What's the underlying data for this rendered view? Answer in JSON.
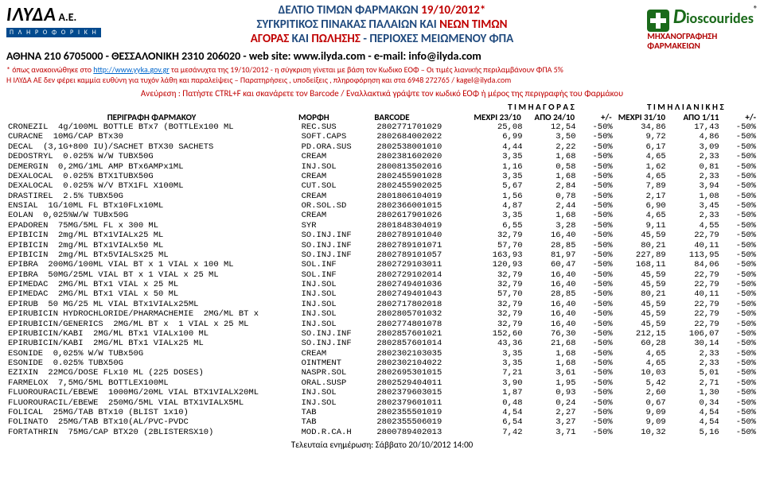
{
  "header": {
    "logo_left": {
      "name": "ΙΛΥΔΑ",
      "ae": "Α.Ε.",
      "sub": "Π Λ Η Ρ Ο Φ Ο Ρ Ι Κ Η"
    },
    "logo_right": {
      "name": "ioscourides",
      "mhx1": "ΜΗΧΑΝΟΓΡΑΦΗΣΗ",
      "mhx2": "ΦΑΡΜΑΚΕΙΩΝ"
    },
    "l1a": "ΔΕΛΤΙΟ ΤΙΜΩΝ ΦΑΡΜΑΚΩΝ ",
    "l1b": "19/10/2012*",
    "l2a": "ΣΥΓΚΡΙΤΙΚΟΣ ΠΙΝΑΚΑΣ ΠΑΛΑΙΩΝ ΚΑΙ ",
    "l2b": "ΝΕΩΝ ΤΙΜΩΝ",
    "l3a": "ΑΓΟΡΑΣ ",
    "l3b": "ΚΑΙ ",
    "l3c": "ΠΩΛΗΣΗΣ",
    "l3d": "  -  ΠΕΡΙΟΧΕΣ ΜΕΙΩΜΕΝΟΥ ΦΠΑ",
    "contact": "ΑΘΗΝΑ 210 6705000  -  ΘΕΣΣΑΛΟΝΙΚΗ 2310 206020  -  web site: www.ilyda.com  -  e-mail: info@ilyda.com",
    "note1a": "* όπως ανακοινώθηκε στο ",
    "note1url": "http://www.yyka.gov.gr",
    "note1b": " τα μεσάνυχτα της 19/10/2012  - η σύγκριση γίνεται με βάση τον Κωδικο ΕΟΦ  –   Οι τιμές λιανικής περιλαμβάνουν ΦΠΑ 5%",
    "note2": "Η ΙΛΥΔΑ ΑΕ δεν φέρει καμμία ευθύνη για τυχόν λάθη και παραλείψεις  –   Παρατηρήσεις , υποδείξεις , πληροφόρηση και στα  6948 272765 / kagel@ilyda.com",
    "note3": "Ανεύρεση :   Πατήστε CTRL+F  και σκανάρετε τον Barcode   /   Εναλλακτικά γράψτε τον κωδικό ΕΟΦ ή μέρος της περιγραφής του Φαρμάκου"
  },
  "th": {
    "group1": "Τ Ι Μ Η    Α Γ Ο Ρ Α Σ",
    "group2": "Τ Ι Μ Η    Λ Ι Α Ν Ι Κ Η Σ",
    "c1": "ΠΕΡΙΓΡΑΦΗ  ΦΑΡΜΑΚΟΥ",
    "c2": "ΜΟΡΦΗ",
    "c3": "BARCODE",
    "c4": "ΜΕΧΡΙ 23/10",
    "c5": "ΑΠΟ 24/10",
    "c6": "+/-",
    "c7": "ΜΕΧΡΙ 31/10",
    "c8": "ΑΠΟ 1/11",
    "c9": "+/-"
  },
  "rows": [
    {
      "d": "CRONEZIL  4g/100ML BOTTLE BTx7 (BOTTLEx100 ML",
      "m": "REC.SUS",
      "b": "2802771701029",
      "v": [
        "25,08",
        "12,54",
        "-50%",
        "34,86",
        "17,43",
        "-50%"
      ]
    },
    {
      "d": "CURACNE  10MG/CAP BTx30",
      "m": "SOFT.CAPS",
      "b": "2802684002022",
      "v": [
        "6,99",
        "3,50",
        "-50%",
        "9,72",
        "4,86",
        "-50%"
      ]
    },
    {
      "d": "DECAL  (3,1G+800 IU)/SACHET BTX30 SACHETS",
      "m": "PD.ORA.SUS",
      "b": "2802538001010",
      "v": [
        "4,44",
        "2,22",
        "-50%",
        "6,17",
        "3,09",
        "-50%"
      ]
    },
    {
      "d": "DEDOSTRYL  0.025% W/W TUBX50G",
      "m": "CREAM",
      "b": "2802381602020",
      "v": [
        "3,35",
        "1,68",
        "-50%",
        "4,65",
        "2,33",
        "-50%"
      ]
    },
    {
      "d": "DEMERGIN  0,2MG/1ML AMP BTx6AMPx1ML",
      "m": "INJ.SOL",
      "b": "2800813502016",
      "v": [
        "1,16",
        "0,58",
        "-50%",
        "1,62",
        "0,81",
        "-50%"
      ]
    },
    {
      "d": "DEXALOCAL  0.025% BTX1TUBX50G",
      "m": "CREAM",
      "b": "2802455901028",
      "v": [
        "3,35",
        "1,68",
        "-50%",
        "4,65",
        "2,33",
        "-50%"
      ]
    },
    {
      "d": "DEXALOCAL  0.025% W/V BTX1FL X100ML",
      "m": "CUT.SOL",
      "b": "2802455902025",
      "v": [
        "5,67",
        "2,84",
        "-50%",
        "7,89",
        "3,94",
        "-50%"
      ]
    },
    {
      "d": "DRASTIREL  2.5% TUBX50G",
      "m": "CREAM",
      "b": "2801806104019",
      "v": [
        "1,56",
        "0,78",
        "-50%",
        "2,17",
        "1,08",
        "-50%"
      ]
    },
    {
      "d": "ENSIAL  1G/10ML FL BTx10FLx10ML",
      "m": "OR.SOL.SD",
      "b": "2802366001015",
      "v": [
        "4,87",
        "2,44",
        "-50%",
        "6,90",
        "3,45",
        "-50%"
      ]
    },
    {
      "d": "EOLAN  0,025%W/W TUBx50G",
      "m": "CREAM",
      "b": "2802617901026",
      "v": [
        "3,35",
        "1,68",
        "-50%",
        "4,65",
        "2,33",
        "-50%"
      ]
    },
    {
      "d": "EPADOREN  75MG/5ML FL x 300 ML",
      "m": "SYR",
      "b": "2801848304019",
      "v": [
        "6,55",
        "3,28",
        "-50%",
        "9,11",
        "4,55",
        "-50%"
      ]
    },
    {
      "d": "EPIBICIN  2mg/ML BTx1VIALx25 ML",
      "m": "SO.INJ.INF",
      "b": "2802789101040",
      "v": [
        "32,79",
        "16,40",
        "-50%",
        "45,59",
        "22,79",
        "-50%"
      ]
    },
    {
      "d": "EPIBICIN  2mg/ML BTx1VIALx50 ML",
      "m": "SO.INJ.INF",
      "b": "2802789101071",
      "v": [
        "57,70",
        "28,85",
        "-50%",
        "80,21",
        "40,11",
        "-50%"
      ]
    },
    {
      "d": "EPIBICIN  2mg/ML BTx5VIALSx25 ML",
      "m": "SO.INJ.INF",
      "b": "2802789101057",
      "v": [
        "163,93",
        "81,97",
        "-50%",
        "227,89",
        "113,95",
        "-50%"
      ]
    },
    {
      "d": "EPIBRA  200MG/100ML VIAL BT x 1 VIAL x 100 ML",
      "m": "SOL.INF",
      "b": "2802729103011",
      "v": [
        "120,93",
        "60,47",
        "-50%",
        "168,11",
        "84,06",
        "-50%"
      ]
    },
    {
      "d": "EPIBRA  50MG/25ML VIAL BT x 1 VIAL x 25 ML",
      "m": "SOL.INF",
      "b": "2802729102014",
      "v": [
        "32,79",
        "16,40",
        "-50%",
        "45,59",
        "22,79",
        "-50%"
      ]
    },
    {
      "d": "EPIMEDAC  2MG/ML BTx1 VIAL x 25 ML",
      "m": "INJ.SOL",
      "b": "2802749401036",
      "v": [
        "32,79",
        "16,40",
        "-50%",
        "45,59",
        "22,79",
        "-50%"
      ]
    },
    {
      "d": "EPIMEDAC  2MG/ML BTx1 VIAL x 50 ML",
      "m": "INJ.SOL",
      "b": "2802749401043",
      "v": [
        "57,70",
        "28,85",
        "-50%",
        "80,21",
        "40,11",
        "-50%"
      ]
    },
    {
      "d": "EPIRUB  50 MG/25 ML VIAL BTx1VIALx25ML",
      "m": "INJ.SOL",
      "b": "2802717802018",
      "v": [
        "32,79",
        "16,40",
        "-50%",
        "45,59",
        "22,79",
        "-50%"
      ]
    },
    {
      "d": "EPIRUBICIN HYDROCHLORIDE/PHARMACHEMIE  2MG/ML BT x",
      "m": "INJ.SOL",
      "b": "2802805701032",
      "v": [
        "32,79",
        "16,40",
        "-50%",
        "45,59",
        "22,79",
        "-50%"
      ]
    },
    {
      "d": "EPIRUBICIN/GENERICS  2MG/ML BT x  1 VIAL x 25 ML",
      "m": "INJ.SOL",
      "b": "2802774801078",
      "v": [
        "32,79",
        "16,40",
        "-50%",
        "45,59",
        "22,79",
        "-50%"
      ]
    },
    {
      "d": "EPIRUBICIN/KABI  2MG/ML BTx1 VIALx100 ML",
      "m": "SO.INJ.INF",
      "b": "2802857601021",
      "v": [
        "152,60",
        "76,30",
        "-50%",
        "212,15",
        "106,07",
        "-50%"
      ]
    },
    {
      "d": "EPIRUBICIN/KABI  2MG/ML BTx1 VIALx25 ML",
      "m": "SO.INJ.INF",
      "b": "2802857601014",
      "v": [
        "43,36",
        "21,68",
        "-50%",
        "60,28",
        "30,14",
        "-50%"
      ]
    },
    {
      "d": "ESONIDE  0,025% W/W TUBx50G",
      "m": "CREAM",
      "b": "2802302103035",
      "v": [
        "3,35",
        "1,68",
        "-50%",
        "4,65",
        "2,33",
        "-50%"
      ]
    },
    {
      "d": "ESONIDE  0.025% TUBX50G",
      "m": "OINTMENT",
      "b": "2802302104022",
      "v": [
        "3,35",
        "1,68",
        "-50%",
        "4,65",
        "2,33",
        "-50%"
      ]
    },
    {
      "d": "EZIXIN  22MCG/DOSE FLx10 ML (225 DOSES)",
      "m": "NASPR.SOL",
      "b": "2802695301015",
      "v": [
        "7,21",
        "3,61",
        "-50%",
        "10,03",
        "5,01",
        "-50%"
      ]
    },
    {
      "d": "FARMELOX  7,5MG/5ML BOTTLEX100ML",
      "m": "ORAL.SUSP",
      "b": "2802529404011",
      "v": [
        "3,90",
        "1,95",
        "-50%",
        "5,42",
        "2,71",
        "-50%"
      ]
    },
    {
      "d": "FLUOROURACIL/EBEWE  1000MG/20ML VIAL BTX1VIALX20ML",
      "m": "INJ.SOL",
      "b": "2802379603015",
      "v": [
        "1,87",
        "0,93",
        "-50%",
        "2,60",
        "1,30",
        "-50%"
      ]
    },
    {
      "d": "FLUOROURACIL/EBEWE  250MG/5ML VIAL BTX1VIALX5ML",
      "m": "INJ.SOL",
      "b": "2802379601011",
      "v": [
        "0,48",
        "0,24",
        "-50%",
        "0,67",
        "0,34",
        "-50%"
      ]
    },
    {
      "d": "FOLICAL  25MG/TAB BTx10 (BLIST 1x10)",
      "m": "TAB",
      "b": "2802355501019",
      "v": [
        "4,54",
        "2,27",
        "-50%",
        "9,09",
        "4,54",
        "-50%"
      ]
    },
    {
      "d": "FOLINATO  25MG/TAB BTx10(AL/PVC-PVDC",
      "m": "TAB",
      "b": "2802355506019",
      "v": [
        "6,54",
        "3,27",
        "-50%",
        "9,09",
        "4,54",
        "-50%"
      ]
    },
    {
      "d": "FORTATHRIN  75MG/CAP BTX20 (2BLISTERSX10)",
      "m": "MOD.R.CA.H",
      "b": "2800789402013",
      "v": [
        "7,42",
        "3,71",
        "-50%",
        "10,32",
        "5,16",
        "-50%"
      ]
    }
  ],
  "footer": "Τελευταία ενημέρωση:  Σάββατο 20/10/2012 14:00"
}
